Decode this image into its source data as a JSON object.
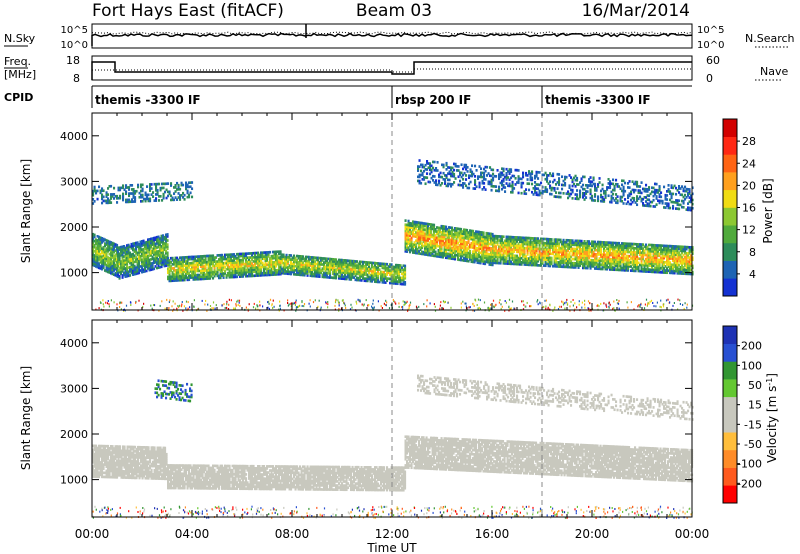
{
  "header": {
    "station": "Fort Hays East (fitACF)",
    "beam": "Beam 03",
    "date": "16/Mar/2014"
  },
  "noise_panel": {
    "left_label": "N.Sky",
    "right_label": "N.Search",
    "left_ticks": [
      "10^5",
      "10^0"
    ],
    "right_ticks": [
      "10^5",
      "10^0"
    ]
  },
  "freq_panel": {
    "left_label_line1": "Freq.",
    "left_label_line2": "[MHz]",
    "right_label": "Nave",
    "left_ticks": [
      "18",
      "8"
    ],
    "right_ticks": [
      "60",
      "0"
    ]
  },
  "cpid_panel": {
    "label": "CPID",
    "segments": [
      {
        "name": "themis -3300 IF",
        "start_hour": 0
      },
      {
        "name": "rbsp 200 IF",
        "start_hour": 12
      },
      {
        "name": "themis -3300 IF",
        "start_hour": 18
      }
    ]
  },
  "colors": {
    "power_scale": [
      "#1432d2",
      "#1e64b4",
      "#2d8c5a",
      "#50aa3c",
      "#8cc832",
      "#f0dc14",
      "#ffa01e",
      "#ff6414",
      "#ff2814",
      "#d20000"
    ],
    "velocity_scale": [
      "#ff0000",
      "#ff5a1e",
      "#ff8c28",
      "#ffbe3c",
      "#c8c8be",
      "#c8c8be",
      "#64c832",
      "#329632",
      "#2850d2",
      "#1e32b4"
    ]
  },
  "chart_data": [
    {
      "type": "heatmap",
      "name": "power",
      "ylabel": "Slant Range [km]",
      "ylim": [
        180,
        4500
      ],
      "yticks": [
        1000,
        2000,
        3000,
        4000
      ],
      "xlim": [
        0,
        24
      ],
      "colorbar": {
        "label": "Power [dB]",
        "range": [
          0,
          32
        ],
        "ticks": [
          4,
          8,
          12,
          16,
          20,
          24,
          28
        ]
      },
      "echo_bands": [
        {
          "t0": 0.0,
          "t1": 1.0,
          "center0": 1500,
          "center1": 1250,
          "width": 700,
          "value": 15
        },
        {
          "t0": 1.0,
          "t1": 3.0,
          "center0": 1200,
          "center1": 1500,
          "width": 700,
          "value": 14
        },
        {
          "t0": 3.0,
          "t1": 7.5,
          "center0": 1050,
          "center1": 1200,
          "width": 500,
          "value": 18
        },
        {
          "t0": 7.5,
          "t1": 12.5,
          "center0": 1200,
          "center1": 950,
          "width": 450,
          "value": 17
        },
        {
          "t0": 12.5,
          "t1": 16.0,
          "center0": 1800,
          "center1": 1500,
          "width": 700,
          "value": 22
        },
        {
          "t0": 16.0,
          "t1": 24.0,
          "center0": 1500,
          "center1": 1250,
          "width": 600,
          "value": 21
        }
      ],
      "far_bands": [
        {
          "t0": 0.0,
          "t1": 4.0,
          "center0": 2700,
          "center1": 2800,
          "width": 400,
          "value": 6
        },
        {
          "t0": 13.0,
          "t1": 24.0,
          "center0": 3200,
          "center1": 2600,
          "width": 500,
          "value": 5
        }
      ]
    },
    {
      "type": "heatmap",
      "name": "velocity",
      "ylabel": "Slant Range [km]",
      "ylim": [
        180,
        4500
      ],
      "yticks": [
        1000,
        2000,
        3000,
        4000
      ],
      "xlim": [
        0,
        24
      ],
      "colorbar": {
        "label": "Velocity [m s^-1]",
        "range": [
          -250,
          250
        ],
        "ticks": [
          200,
          100,
          50,
          15,
          -15,
          -50,
          -100,
          -200
        ]
      },
      "echo_bands": [
        {
          "t0": 0.0,
          "t1": 3.0,
          "center0": 1400,
          "center1": 1350,
          "width": 700,
          "value": 0
        },
        {
          "t0": 3.0,
          "t1": 12.5,
          "center0": 1050,
          "center1": 1000,
          "width": 500,
          "value": 30
        },
        {
          "t0": 12.5,
          "t1": 24.0,
          "center0": 1600,
          "center1": 1300,
          "width": 700,
          "value": 0
        }
      ],
      "far_bands": [
        {
          "t0": 2.5,
          "t1": 4.0,
          "center0": 3000,
          "center1": 2900,
          "width": 400,
          "value": 150
        },
        {
          "t0": 13.0,
          "t1": 24.0,
          "center0": 3100,
          "center1": 2500,
          "width": 400,
          "value": 0
        }
      ]
    }
  ],
  "xaxis": {
    "label": "Time UT",
    "ticks": [
      "00:00",
      "04:00",
      "08:00",
      "12:00",
      "16:00",
      "20:00",
      "00:00"
    ],
    "tick_hours": [
      0,
      4,
      8,
      12,
      16,
      20,
      24
    ]
  }
}
